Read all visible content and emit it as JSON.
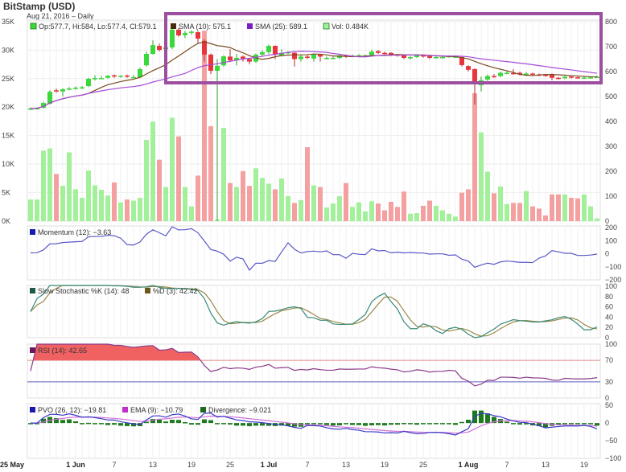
{
  "header": {
    "title": "BitStamp (USD)",
    "subtitle": "Aug 21, 2016 – Daily"
  },
  "legends": {
    "ohlc": "Op:577.7, Hi:584, Lo:577.4, Cl:579.1",
    "sma10": "SMA (10): 575.1",
    "sma25": "SMA (25): 589.1",
    "vol": "Vol: 0.484K",
    "momentum": "Momentum (12): −3.63",
    "stoch_k": "Slow Stochastic %K (14): 48",
    "stoch_d": "%D (3): 42.42",
    "rsi": "RSI (14): 42.65",
    "pvo": "PVO (26, 12): −19.81",
    "pvo_ema": "EMA (9): −10.79",
    "divergence": "Divergence: −9.021"
  },
  "colors": {
    "up": "#3ad83a",
    "down": "#e8343c",
    "vol_up": "#a2f09a",
    "vol_down": "#f5a0a0",
    "sma10": "#7a4a1e",
    "sma25": "#a64ad6",
    "momentum": "#5a5ac8",
    "stoch_k": "#3a8a7a",
    "stoch_d": "#9a8a4a",
    "rsi": "#8a3a8a",
    "rsi_fill": "#f06262",
    "pvo": "#3a3ac8",
    "pvo_ema": "#d070d8",
    "divergence": "#1e7a1e",
    "highlight": "#9b4f9e"
  },
  "chart_data": {
    "type": "candlestick",
    "start_date": "2016-05-25",
    "end_date": "2016-08-21",
    "x_tick_labels": [
      "25 May",
      "1 Jun",
      "7",
      "13",
      "19",
      "25",
      "1 Jul",
      "7",
      "13",
      "19",
      "25",
      "1 Aug",
      "7",
      "13",
      "19"
    ],
    "price_axis": {
      "ticks": [
        "800",
        "700",
        "600",
        "500",
        "400",
        "300",
        "200",
        "100",
        "0"
      ],
      "range": [
        0,
        800
      ]
    },
    "volume_axis": {
      "ticks": [
        "35K",
        "30K",
        "25K",
        "20K",
        "15K",
        "10K",
        "5K",
        "0K"
      ],
      "range": [
        0,
        35
      ],
      "unit": "K"
    },
    "momentum_axis": [
      "200",
      "100",
      "0",
      "−100",
      "−200"
    ],
    "stoch_axis": [
      "100",
      "80",
      "60",
      "40",
      "20",
      "0"
    ],
    "rsi_axis": [
      "100",
      "70",
      "30",
      "0"
    ],
    "pvo_axis": [
      "50",
      "0",
      "−50",
      "−100"
    ],
    "ohlc": [
      [
        448,
        455,
        445,
        452
      ],
      [
        452,
        456,
        448,
        453
      ],
      [
        455,
        478,
        452,
        474
      ],
      [
        471,
        525,
        468,
        519
      ],
      [
        525,
        532,
        515,
        520
      ],
      [
        520,
        533,
        500,
        529
      ],
      [
        529,
        538,
        525,
        532
      ],
      [
        532,
        540,
        528,
        535
      ],
      [
        535,
        542,
        530,
        537
      ],
      [
        542,
        575,
        538,
        571
      ],
      [
        571,
        585,
        565,
        574
      ],
      [
        574,
        582,
        570,
        574
      ],
      [
        575,
        586,
        572,
        583
      ],
      [
        585,
        588,
        575,
        580
      ],
      [
        580,
        586,
        576,
        583
      ],
      [
        584,
        588,
        575,
        580
      ],
      [
        578,
        586,
        574,
        578
      ],
      [
        577,
        615,
        575,
        610
      ],
      [
        625,
        680,
        620,
        671
      ],
      [
        671,
        725,
        668,
        706
      ],
      [
        703,
        712,
        680,
        687
      ],
      [
        690,
        705,
        675,
        697
      ],
      [
        697,
        772,
        690,
        768
      ],
      [
        768,
        775,
        740,
        745
      ],
      [
        746,
        762,
        735,
        755
      ],
      [
        757,
        765,
        748,
        760
      ],
      [
        758,
        762,
        715,
        732
      ],
      [
        723,
        730,
        640,
        668
      ],
      [
        668,
        672,
        590,
        603
      ],
      [
        603,
        650,
        0,
        623
      ],
      [
        625,
        665,
        620,
        661
      ],
      [
        660,
        690,
        640,
        645
      ],
      [
        645,
        670,
        625,
        655
      ],
      [
        660,
        665,
        640,
        652
      ],
      [
        650,
        655,
        630,
        640
      ],
      [
        640,
        672,
        635,
        668
      ],
      [
        668,
        685,
        660,
        678
      ],
      [
        678,
        708,
        670,
        703
      ],
      [
        703,
        705,
        650,
        668
      ],
      [
        665,
        690,
        660,
        675
      ],
      [
        675,
        682,
        670,
        678
      ],
      [
        675,
        680,
        620,
        650
      ],
      [
        650,
        668,
        640,
        660
      ],
      [
        660,
        665,
        650,
        655
      ],
      [
        652,
        672,
        640,
        668
      ],
      [
        668,
        670,
        640,
        660
      ],
      [
        655,
        660,
        648,
        655
      ],
      [
        653,
        660,
        650,
        655
      ],
      [
        655,
        668,
        650,
        665
      ],
      [
        666,
        668,
        655,
        663
      ],
      [
        663,
        668,
        660,
        664
      ],
      [
        664,
        670,
        660,
        665
      ],
      [
        665,
        668,
        660,
        665
      ],
      [
        665,
        688,
        660,
        680
      ],
      [
        682,
        686,
        670,
        675
      ],
      [
        675,
        680,
        668,
        673
      ],
      [
        675,
        678,
        662,
        668
      ],
      [
        668,
        670,
        660,
        665
      ],
      [
        665,
        668,
        650,
        655
      ],
      [
        653,
        662,
        648,
        658
      ],
      [
        658,
        668,
        655,
        665
      ],
      [
        665,
        668,
        656,
        662
      ],
      [
        662,
        664,
        650,
        655
      ],
      [
        656,
        662,
        652,
        658
      ],
      [
        658,
        662,
        654,
        658
      ],
      [
        660,
        665,
        656,
        662
      ],
      [
        660,
        664,
        655,
        660
      ],
      [
        658,
        660,
        620,
        626
      ],
      [
        622,
        625,
        600,
        607
      ],
      [
        610,
        612,
        468,
        558
      ],
      [
        545,
        580,
        520,
        565
      ],
      [
        568,
        588,
        562,
        582
      ],
      [
        582,
        590,
        575,
        580
      ],
      [
        582,
        600,
        578,
        595
      ],
      [
        595,
        605,
        590,
        595
      ],
      [
        594,
        610,
        588,
        593
      ],
      [
        595,
        600,
        584,
        588
      ],
      [
        585,
        598,
        582,
        592
      ],
      [
        592,
        596,
        584,
        588
      ],
      [
        588,
        592,
        582,
        587
      ],
      [
        587,
        590,
        580,
        585
      ],
      [
        590,
        592,
        565,
        575
      ],
      [
        575,
        578,
        568,
        573
      ],
      [
        573,
        582,
        570,
        579
      ],
      [
        580,
        582,
        572,
        577
      ],
      [
        577,
        580,
        572,
        576
      ],
      [
        576,
        579,
        570,
        576
      ],
      [
        576,
        580,
        572,
        577
      ],
      [
        577.7,
        584,
        577.4,
        579.1
      ]
    ],
    "volume_k": [
      3.8,
      3.8,
      12.4,
      12.8,
      8.3,
      6.2,
      12.1,
      5.6,
      4.1,
      8.9,
      6.3,
      5.5,
      4.5,
      6.8,
      3.3,
      3.8,
      3.6,
      4.1,
      14.3,
      17.5,
      10.8,
      6.0,
      18.2,
      14.9,
      6.0,
      2.6,
      8.0,
      33.5,
      16.7,
      0.3,
      16.4,
      6.7,
      6.0,
      8.8,
      6.2,
      9.3,
      7.6,
      6.6,
      5.6,
      7.5,
      4.4,
      3.2,
      3.7,
      13.0,
      6.3,
      6.0,
      2.4,
      3.1,
      4.4,
      6.7,
      2.5,
      3.3,
      1.7,
      3.5,
      3.1,
      1.9,
      3.4,
      2.5,
      5.2,
      1.3,
      1.4,
      2.7,
      3.6,
      2.7,
      1.9,
      1.3,
      0.8,
      5.0,
      5.6,
      22.5,
      15.6,
      8.7,
      4.9,
      6.1,
      3.0,
      3.2,
      3.2,
      5.3,
      2.6,
      2.2,
      1.0,
      4.7,
      4.7,
      4.7,
      4.1,
      4.0,
      4.7,
      2.6,
      0.484
    ]
  }
}
